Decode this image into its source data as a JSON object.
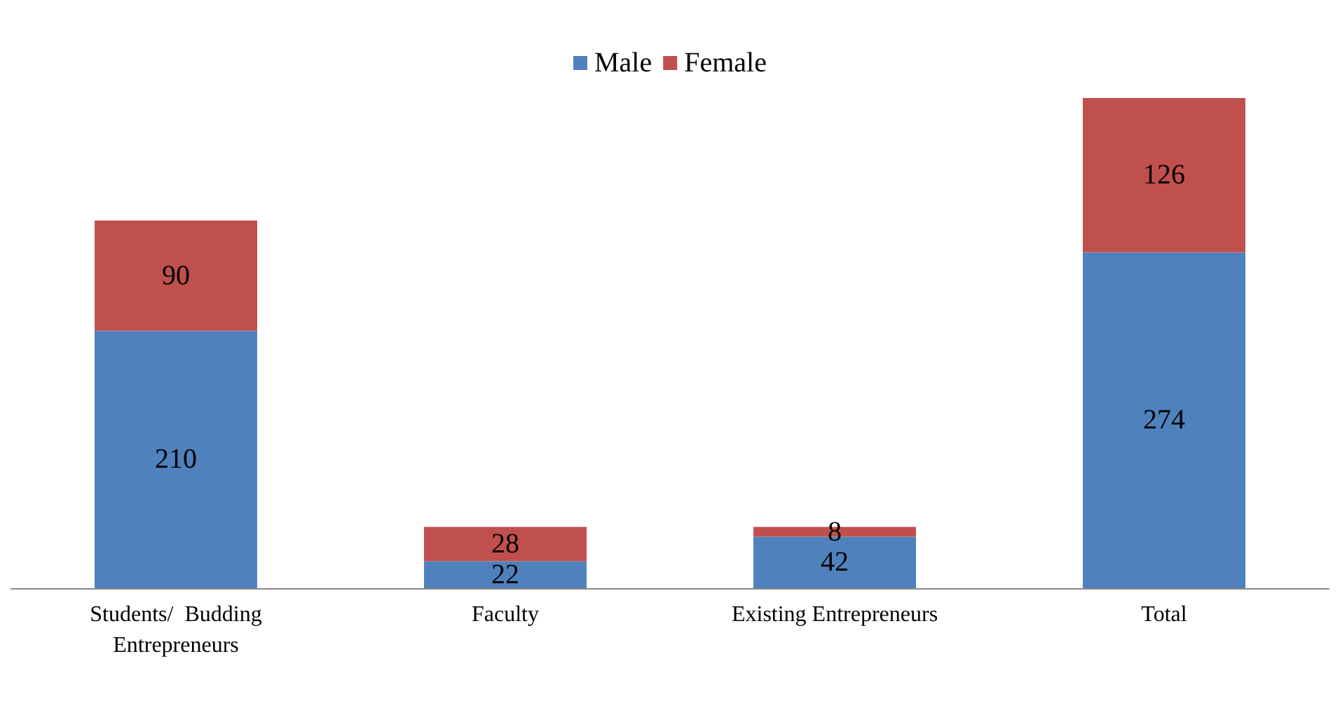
{
  "chart_data": {
    "type": "bar",
    "stacked": true,
    "data_labels": true,
    "legend": "top",
    "categories": [
      "Students/  Budding\nEntrepreneurs",
      "Faculty",
      "Existing Entrepreneurs",
      "Total"
    ],
    "series": [
      {
        "name": "Male",
        "color": "#4f81bd",
        "values": [
          210,
          22,
          42,
          274
        ]
      },
      {
        "name": "Female",
        "color": "#c0504d",
        "values": [
          90,
          28,
          8,
          126
        ]
      }
    ]
  }
}
